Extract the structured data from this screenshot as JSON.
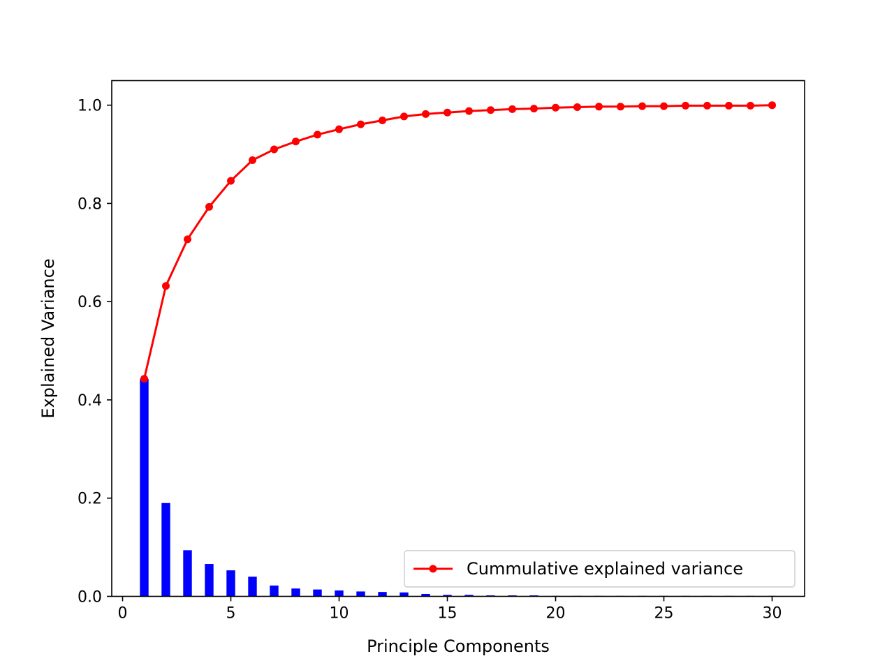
{
  "chart_data": {
    "type": "bar+line",
    "title": "",
    "xlabel": "Principle Components",
    "ylabel": "Explained Variance",
    "xlim": [
      -0.5,
      31.5
    ],
    "ylim": [
      0.0,
      1.05
    ],
    "x_ticks": [
      0,
      5,
      10,
      15,
      20,
      25,
      30
    ],
    "x_tick_labels": [
      "0",
      "5",
      "10",
      "15",
      "20",
      "25",
      "30"
    ],
    "y_ticks": [
      0.0,
      0.2,
      0.4,
      0.6,
      0.8,
      1.0
    ],
    "y_tick_labels": [
      "0.0",
      "0.2",
      "0.4",
      "0.6",
      "0.8",
      "1.0"
    ],
    "grid": false,
    "legend_position": "lower-right",
    "x": [
      1,
      2,
      3,
      4,
      5,
      6,
      7,
      8,
      9,
      10,
      11,
      12,
      13,
      14,
      15,
      16,
      17,
      18,
      19,
      20,
      21,
      22,
      23,
      24,
      25,
      26,
      27,
      28,
      29,
      30
    ],
    "bars": {
      "color": "#0000ff",
      "values": [
        0.443,
        0.19,
        0.094,
        0.066,
        0.053,
        0.04,
        0.022,
        0.016,
        0.014,
        0.012,
        0.01,
        0.009,
        0.008,
        0.005,
        0.003,
        0.003,
        0.002,
        0.002,
        0.002,
        0.001,
        0.001,
        0.001,
        0.001,
        0.001,
        0.001,
        0.001,
        0.001,
        0.001,
        0.001,
        0.001
      ]
    },
    "series": [
      {
        "name": "Cummulative explained variance",
        "color": "#ff0000",
        "values": [
          0.443,
          0.632,
          0.727,
          0.793,
          0.846,
          0.888,
          0.91,
          0.926,
          0.94,
          0.951,
          0.961,
          0.969,
          0.977,
          0.982,
          0.985,
          0.988,
          0.99,
          0.992,
          0.993,
          0.995,
          0.996,
          0.997,
          0.997,
          0.998,
          0.998,
          0.999,
          0.999,
          0.999,
          0.999,
          1.0
        ]
      }
    ]
  }
}
